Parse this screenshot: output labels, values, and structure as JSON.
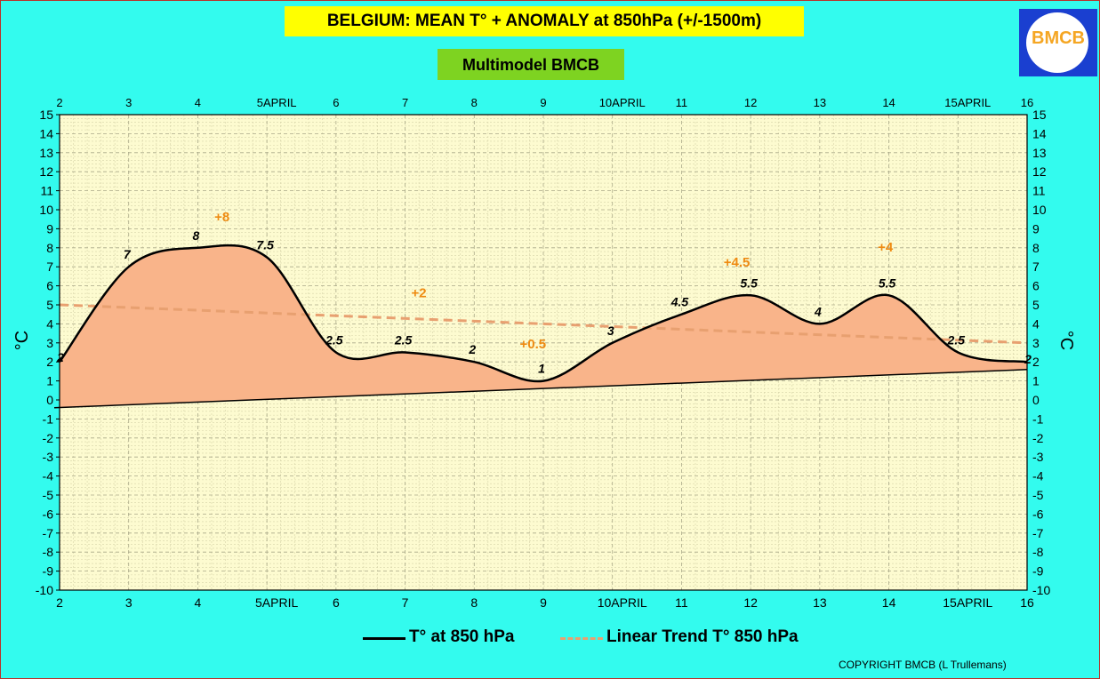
{
  "title": "BELGIUM:  MEAN T° + ANOMALY at 850hPa (+/-1500m)",
  "subtitle": "Multimodel BMCB",
  "logo_text": "BMCB",
  "copyright": "COPYRIGHT BMCB (L Trullemans)",
  "colors": {
    "background": "#33fbee",
    "plot_area": "#fdfbd0",
    "fill": "#f9b48a",
    "line": "#000000",
    "trend": "#e8a070",
    "anomaly": "#ee8a11",
    "title_box": "#ffff00",
    "subtitle_box": "#7ed321"
  },
  "chart_data": {
    "type": "area",
    "x_ticks": [
      "2",
      "3",
      "4",
      "5APRIL",
      "6",
      "7",
      "8",
      "9",
      "10APRIL",
      "11",
      "12",
      "13",
      "14",
      "15APRIL",
      "16"
    ],
    "ylabel": "°C",
    "ylabel_right": "°C",
    "ylim": [
      -10,
      15
    ],
    "y_ticks": [
      "15",
      "14",
      "13",
      "12",
      "11",
      "10",
      "9",
      "8",
      "7",
      "6",
      "5",
      "4",
      "3",
      "2",
      "1",
      "0",
      "-1",
      "-2",
      "-3",
      "-4",
      "-5",
      "-6",
      "-7",
      "-8",
      "-9",
      "-10"
    ],
    "grid": true,
    "series": [
      {
        "name": "T° at 850 hPa",
        "x": [
          2,
          3,
          4,
          5,
          6,
          7,
          8,
          9,
          10,
          11,
          12,
          13,
          14,
          15,
          16
        ],
        "values": [
          2,
          7,
          8,
          7.5,
          2.5,
          2.5,
          2,
          1,
          3,
          4.5,
          5.5,
          4,
          5.5,
          2.5,
          2
        ]
      },
      {
        "name": "Linear Trend T° 850 hPa",
        "x": [
          2,
          16
        ],
        "values": [
          5,
          3
        ]
      }
    ],
    "baseline_trend": {
      "x": [
        2,
        16
      ],
      "values": [
        -0.4,
        1.6
      ]
    },
    "point_labels": [
      "2",
      "7",
      "8",
      "7.5",
      "2.5",
      "2.5",
      "2",
      "1",
      "3",
      "4.5",
      "5.5",
      "4",
      "5.5",
      "2.5",
      "2"
    ],
    "anomaly_labels": [
      {
        "text": "+8",
        "x": 4.35,
        "y": 9.4
      },
      {
        "text": "+2",
        "x": 7.2,
        "y": 5.4
      },
      {
        "text": "+0.5",
        "x": 8.85,
        "y": 2.7
      },
      {
        "text": "+4.5",
        "x": 11.8,
        "y": 7
      },
      {
        "text": "+4",
        "x": 13.95,
        "y": 7.8
      }
    ]
  }
}
